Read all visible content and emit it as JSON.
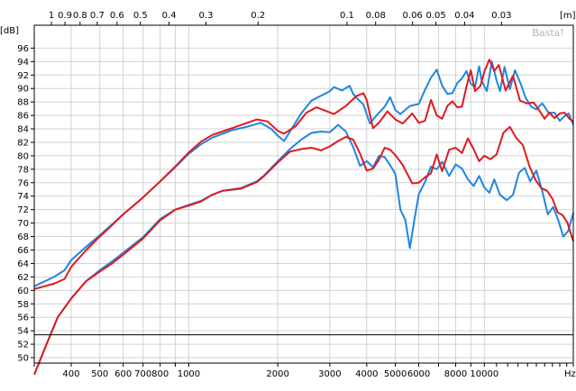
{
  "chart_data": {
    "type": "line",
    "y_unit_label": "[dB]",
    "top_unit_label": "[m]",
    "x_unit_label": "Hz",
    "watermark": "Basta!",
    "x_scale": "log",
    "xlim": [
      300,
      20000
    ],
    "ylim": [
      49.2,
      99.4
    ],
    "grid": true,
    "y_ticks": [
      50,
      52,
      54,
      56,
      58,
      60,
      62,
      64,
      66,
      68,
      70,
      72,
      74,
      76,
      78,
      80,
      82,
      84,
      86,
      88,
      90,
      92,
      94,
      96
    ],
    "x_tick_labels": [
      {
        "value": 400,
        "label": "400"
      },
      {
        "value": 500,
        "label": "500"
      },
      {
        "value": 600,
        "label": "600"
      },
      {
        "value": 700,
        "label": "700"
      },
      {
        "value": 800,
        "label": "800"
      },
      {
        "value": 1000,
        "label": "1000"
      },
      {
        "value": 2000,
        "label": "2000"
      },
      {
        "value": 3000,
        "label": "3000"
      },
      {
        "value": 4000,
        "label": "4000"
      },
      {
        "value": 5000,
        "label": "5000"
      },
      {
        "value": 6000,
        "label": "6000"
      },
      {
        "value": 8000,
        "label": "8000"
      },
      {
        "value": 10000,
        "label": "10000"
      }
    ],
    "top_tick_labels": [
      {
        "value": 1,
        "label": "1"
      },
      {
        "value": 0.9,
        "label": "0.9"
      },
      {
        "value": 0.8,
        "label": "0.8"
      },
      {
        "value": 0.7,
        "label": "0.7"
      },
      {
        "value": 0.6,
        "label": "0.6"
      },
      {
        "value": 0.5,
        "label": "0.5"
      },
      {
        "value": 0.4,
        "label": "0.4"
      },
      {
        "value": 0.3,
        "label": "0.3"
      },
      {
        "value": 0.2,
        "label": "0.2"
      },
      {
        "value": 0.1,
        "label": "0.1"
      },
      {
        "value": 0.08,
        "label": "0.08"
      },
      {
        "value": 0.06,
        "label": "0.06"
      },
      {
        "value": 0.05,
        "label": "0.05"
      },
      {
        "value": 0.04,
        "label": "0.04"
      },
      {
        "value": 0.03,
        "label": "0.03"
      }
    ],
    "reference_line": {
      "y": 53.4,
      "color": "#000000"
    },
    "series": [
      {
        "color": "#1f86e0",
        "points": [
          [
            300,
            60.6
          ],
          [
            350,
            62.0
          ],
          [
            380,
            63.0
          ],
          [
            400,
            64.5
          ],
          [
            450,
            66.5
          ],
          [
            500,
            68.2
          ],
          [
            550,
            69.8
          ],
          [
            600,
            71.3
          ],
          [
            700,
            73.8
          ],
          [
            800,
            76.2
          ],
          [
            900,
            78.3
          ],
          [
            1000,
            80.3
          ],
          [
            1100,
            81.7
          ],
          [
            1200,
            82.7
          ],
          [
            1400,
            83.8
          ],
          [
            1600,
            84.4
          ],
          [
            1750,
            84.9
          ],
          [
            1900,
            84.0
          ],
          [
            2000,
            83.0
          ],
          [
            2100,
            82.2
          ],
          [
            2200,
            83.6
          ],
          [
            2400,
            86.3
          ],
          [
            2600,
            88.2
          ],
          [
            2800,
            88.9
          ],
          [
            3000,
            89.6
          ],
          [
            3100,
            90.2
          ],
          [
            3300,
            89.7
          ],
          [
            3500,
            90.4
          ],
          [
            3600,
            89.2
          ],
          [
            3700,
            88.6
          ],
          [
            3900,
            87.6
          ],
          [
            4100,
            84.8
          ],
          [
            4300,
            85.9
          ],
          [
            4600,
            87.3
          ],
          [
            4800,
            88.7
          ],
          [
            5000,
            86.8
          ],
          [
            5200,
            86.2
          ],
          [
            5600,
            87.4
          ],
          [
            6000,
            87.7
          ],
          [
            6300,
            89.8
          ],
          [
            6600,
            91.6
          ],
          [
            6900,
            92.8
          ],
          [
            7200,
            90.4
          ],
          [
            7500,
            89.2
          ],
          [
            7800,
            89.3
          ],
          [
            8100,
            90.8
          ],
          [
            8400,
            91.5
          ],
          [
            8700,
            92.6
          ],
          [
            9000,
            90.7
          ],
          [
            9300,
            90.2
          ],
          [
            9600,
            93.3
          ],
          [
            9800,
            91.1
          ],
          [
            10200,
            89.6
          ],
          [
            10600,
            94.0
          ],
          [
            11000,
            91.2
          ],
          [
            11300,
            89.6
          ],
          [
            11700,
            93.2
          ],
          [
            12200,
            89.9
          ],
          [
            12700,
            92.7
          ],
          [
            13300,
            90.6
          ],
          [
            13800,
            88.6
          ],
          [
            14400,
            87.3
          ],
          [
            15000,
            86.9
          ],
          [
            15700,
            87.8
          ],
          [
            16500,
            86.4
          ],
          [
            17300,
            86.4
          ],
          [
            18000,
            85.2
          ],
          [
            18700,
            85.9
          ],
          [
            19300,
            86.3
          ],
          [
            20000,
            84.6
          ]
        ]
      },
      {
        "color": "#e0191f",
        "points": [
          [
            300,
            60.2
          ],
          [
            350,
            61.0
          ],
          [
            380,
            61.7
          ],
          [
            400,
            63.5
          ],
          [
            450,
            66.0
          ],
          [
            500,
            68.0
          ],
          [
            550,
            69.7
          ],
          [
            600,
            71.3
          ],
          [
            700,
            73.8
          ],
          [
            800,
            76.2
          ],
          [
            900,
            78.4
          ],
          [
            1000,
            80.5
          ],
          [
            1100,
            82.1
          ],
          [
            1200,
            83.1
          ],
          [
            1400,
            84.1
          ],
          [
            1600,
            85.0
          ],
          [
            1700,
            85.4
          ],
          [
            1850,
            85.1
          ],
          [
            2000,
            83.7
          ],
          [
            2100,
            83.3
          ],
          [
            2300,
            84.4
          ],
          [
            2500,
            86.4
          ],
          [
            2700,
            87.2
          ],
          [
            2900,
            86.7
          ],
          [
            3100,
            86.2
          ],
          [
            3400,
            87.4
          ],
          [
            3700,
            88.9
          ],
          [
            3900,
            89.3
          ],
          [
            4000,
            88.3
          ],
          [
            4200,
            84.1
          ],
          [
            4400,
            84.9
          ],
          [
            4700,
            86.6
          ],
          [
            5000,
            85.4
          ],
          [
            5300,
            84.8
          ],
          [
            5700,
            86.3
          ],
          [
            6000,
            84.9
          ],
          [
            6300,
            85.2
          ],
          [
            6600,
            88.3
          ],
          [
            6900,
            86.0
          ],
          [
            7200,
            85.5
          ],
          [
            7500,
            87.4
          ],
          [
            7800,
            88.1
          ],
          [
            8100,
            87.2
          ],
          [
            8400,
            87.3
          ],
          [
            8700,
            90.3
          ],
          [
            9000,
            92.7
          ],
          [
            9300,
            89.6
          ],
          [
            9700,
            90.4
          ],
          [
            10000,
            92.5
          ],
          [
            10400,
            94.3
          ],
          [
            10800,
            92.6
          ],
          [
            11200,
            93.5
          ],
          [
            11800,
            89.7
          ],
          [
            12500,
            91.9
          ],
          [
            13200,
            88.2
          ],
          [
            13900,
            87.8
          ],
          [
            14700,
            87.9
          ],
          [
            15300,
            86.8
          ],
          [
            16000,
            85.5
          ],
          [
            16600,
            86.4
          ],
          [
            17300,
            85.6
          ],
          [
            18000,
            86.3
          ],
          [
            18700,
            86.4
          ],
          [
            19400,
            85.5
          ],
          [
            20000,
            85.1
          ]
        ]
      },
      {
        "color": "#1f86e0",
        "points": [
          [
            300,
            47.5
          ],
          [
            330,
            52.0
          ],
          [
            360,
            56.0
          ],
          [
            400,
            58.8
          ],
          [
            450,
            61.4
          ],
          [
            500,
            63.0
          ],
          [
            550,
            64.3
          ],
          [
            600,
            65.6
          ],
          [
            700,
            67.9
          ],
          [
            800,
            70.6
          ],
          [
            900,
            72.0
          ],
          [
            1000,
            72.7
          ],
          [
            1100,
            73.3
          ],
          [
            1200,
            74.2
          ],
          [
            1300,
            74.8
          ],
          [
            1500,
            75.2
          ],
          [
            1700,
            76.2
          ],
          [
            1800,
            77.1
          ],
          [
            2000,
            79.2
          ],
          [
            2200,
            81.0
          ],
          [
            2400,
            82.4
          ],
          [
            2600,
            83.4
          ],
          [
            2800,
            83.6
          ],
          [
            3000,
            83.5
          ],
          [
            3200,
            84.6
          ],
          [
            3400,
            83.6
          ],
          [
            3600,
            81.3
          ],
          [
            3800,
            78.5
          ],
          [
            4000,
            79.2
          ],
          [
            4200,
            78.3
          ],
          [
            4400,
            80.0
          ],
          [
            4600,
            79.8
          ],
          [
            4800,
            78.6
          ],
          [
            5000,
            77.3
          ],
          [
            5200,
            72.0
          ],
          [
            5400,
            70.5
          ],
          [
            5600,
            66.3
          ],
          [
            5800,
            70.5
          ],
          [
            6000,
            74.3
          ],
          [
            6300,
            76.1
          ],
          [
            6600,
            78.4
          ],
          [
            6900,
            78.0
          ],
          [
            7200,
            79.1
          ],
          [
            7600,
            77.0
          ],
          [
            8000,
            78.7
          ],
          [
            8400,
            78.1
          ],
          [
            8800,
            76.5
          ],
          [
            9200,
            75.5
          ],
          [
            9600,
            77.0
          ],
          [
            10000,
            75.3
          ],
          [
            10400,
            74.5
          ],
          [
            10800,
            76.5
          ],
          [
            11300,
            74.2
          ],
          [
            11900,
            73.4
          ],
          [
            12500,
            74.2
          ],
          [
            13100,
            77.5
          ],
          [
            13700,
            78.2
          ],
          [
            14300,
            76.2
          ],
          [
            15000,
            77.8
          ],
          [
            15700,
            74.8
          ],
          [
            16400,
            71.3
          ],
          [
            17100,
            72.4
          ],
          [
            17800,
            70.4
          ],
          [
            18500,
            68.0
          ],
          [
            19200,
            68.8
          ],
          [
            20000,
            71.5
          ]
        ]
      },
      {
        "color": "#e0191f",
        "points": [
          [
            300,
            47.5
          ],
          [
            330,
            52.0
          ],
          [
            360,
            56.0
          ],
          [
            400,
            58.8
          ],
          [
            450,
            61.4
          ],
          [
            500,
            62.8
          ],
          [
            550,
            64.0
          ],
          [
            600,
            65.3
          ],
          [
            700,
            67.7
          ],
          [
            800,
            70.4
          ],
          [
            900,
            72.0
          ],
          [
            1000,
            72.6
          ],
          [
            1100,
            73.2
          ],
          [
            1200,
            74.2
          ],
          [
            1300,
            74.8
          ],
          [
            1500,
            75.1
          ],
          [
            1700,
            76.1
          ],
          [
            1800,
            77.0
          ],
          [
            2000,
            79.0
          ],
          [
            2200,
            80.6
          ],
          [
            2400,
            81.0
          ],
          [
            2600,
            81.2
          ],
          [
            2800,
            80.8
          ],
          [
            3000,
            81.4
          ],
          [
            3200,
            82.2
          ],
          [
            3400,
            82.8
          ],
          [
            3600,
            82.4
          ],
          [
            3800,
            80.3
          ],
          [
            4000,
            77.8
          ],
          [
            4200,
            78.1
          ],
          [
            4400,
            79.4
          ],
          [
            4600,
            81.2
          ],
          [
            4800,
            80.9
          ],
          [
            5000,
            80.1
          ],
          [
            5300,
            78.6
          ],
          [
            5700,
            75.9
          ],
          [
            6000,
            76.0
          ],
          [
            6300,
            76.8
          ],
          [
            6600,
            77.4
          ],
          [
            6900,
            80.2
          ],
          [
            7200,
            77.7
          ],
          [
            7600,
            80.9
          ],
          [
            8000,
            81.2
          ],
          [
            8400,
            80.4
          ],
          [
            8800,
            82.6
          ],
          [
            9200,
            81.0
          ],
          [
            9600,
            79.2
          ],
          [
            10000,
            80.0
          ],
          [
            10500,
            79.5
          ],
          [
            11000,
            80.2
          ],
          [
            11600,
            83.4
          ],
          [
            12200,
            84.3
          ],
          [
            12800,
            82.7
          ],
          [
            13500,
            81.6
          ],
          [
            14200,
            78.5
          ],
          [
            14900,
            76.4
          ],
          [
            15600,
            75.2
          ],
          [
            16300,
            74.8
          ],
          [
            17000,
            73.6
          ],
          [
            17700,
            71.6
          ],
          [
            18400,
            71.2
          ],
          [
            19100,
            70.1
          ],
          [
            20000,
            67.3
          ]
        ]
      }
    ]
  }
}
